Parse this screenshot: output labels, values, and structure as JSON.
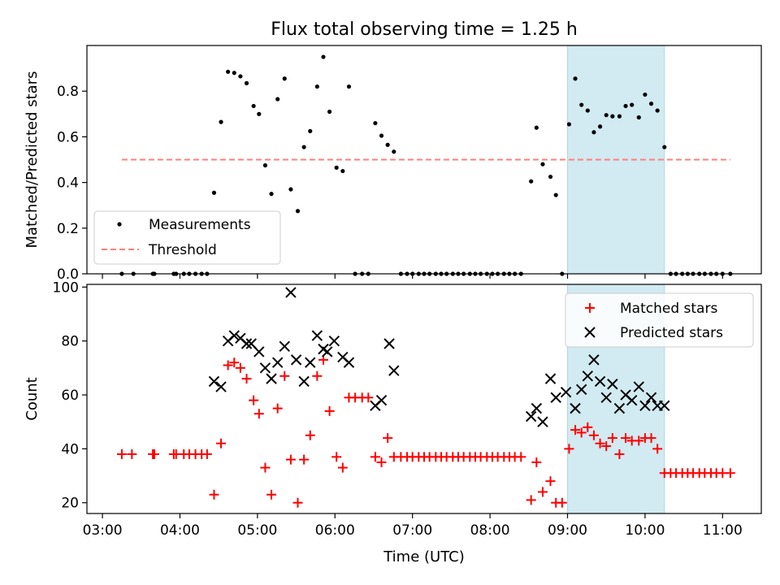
{
  "chart_data": {
    "title": "Flux total observing time = 1.25 h",
    "xlabel": "Time (UTC)",
    "x_unit": "hours UTC",
    "x_ticks": [
      3,
      4,
      5,
      6,
      7,
      8,
      9,
      10,
      11
    ],
    "x_tick_labels": [
      "03:00",
      "04:00",
      "05:00",
      "06:00",
      "07:00",
      "08:00",
      "09:00",
      "10:00",
      "11:00"
    ],
    "xlim": [
      2.8,
      11.5
    ],
    "highlight_span": {
      "start": 9.0,
      "end": 10.25,
      "color": "#add8e6"
    },
    "panels": [
      {
        "type": "scatter",
        "ylabel": "Matched/Predicted stars",
        "ylim": [
          0,
          1.0
        ],
        "y_ticks": [
          0.0,
          0.2,
          0.4,
          0.6,
          0.8
        ],
        "y_tick_labels": [
          "0.0",
          "0.2",
          "0.4",
          "0.6",
          "0.8"
        ],
        "legend_position": "lower-left",
        "series": [
          {
            "name": "Measurements",
            "marker": "dot",
            "color": "#000000",
            "points": [
              [
                3.25,
                0
              ],
              [
                3.4,
                0
              ],
              [
                3.65,
                0
              ],
              [
                3.67,
                0
              ],
              [
                3.92,
                0
              ],
              [
                3.95,
                0
              ],
              [
                4.05,
                0
              ],
              [
                4.12,
                0
              ],
              [
                4.2,
                0
              ],
              [
                4.28,
                0
              ],
              [
                4.35,
                0
              ],
              [
                4.44,
                0.355
              ],
              [
                4.53,
                0.665
              ],
              [
                4.62,
                0.885
              ],
              [
                4.7,
                0.88
              ],
              [
                4.78,
                0.865
              ],
              [
                4.86,
                0.835
              ],
              [
                4.95,
                0.735
              ],
              [
                5.02,
                0.7
              ],
              [
                5.1,
                0.475
              ],
              [
                5.18,
                0.35
              ],
              [
                5.26,
                0.765
              ],
              [
                5.35,
                0.855
              ],
              [
                5.43,
                0.37
              ],
              [
                5.52,
                0.275
              ],
              [
                5.6,
                0.555
              ],
              [
                5.68,
                0.625
              ],
              [
                5.77,
                0.82
              ],
              [
                5.85,
                0.95
              ],
              [
                5.93,
                0.71
              ],
              [
                6.02,
                0.465
              ],
              [
                6.1,
                0.45
              ],
              [
                6.18,
                0.82
              ],
              [
                6.26,
                0
              ],
              [
                6.35,
                0
              ],
              [
                6.43,
                0
              ],
              [
                6.52,
                0.66
              ],
              [
                6.6,
                0.605
              ],
              [
                6.68,
                0.565
              ],
              [
                6.76,
                0.535
              ],
              [
                6.85,
                0
              ],
              [
                6.93,
                0
              ],
              [
                7.0,
                0
              ],
              [
                7.08,
                0
              ],
              [
                7.15,
                0
              ],
              [
                7.22,
                0
              ],
              [
                7.3,
                0
              ],
              [
                7.37,
                0
              ],
              [
                7.44,
                0
              ],
              [
                7.52,
                0
              ],
              [
                7.59,
                0
              ],
              [
                7.66,
                0
              ],
              [
                7.74,
                0
              ],
              [
                7.81,
                0
              ],
              [
                7.88,
                0
              ],
              [
                7.96,
                0
              ],
              [
                8.03,
                0
              ],
              [
                8.1,
                0
              ],
              [
                8.18,
                0
              ],
              [
                8.25,
                0
              ],
              [
                8.32,
                0
              ],
              [
                8.4,
                0
              ],
              [
                8.53,
                0.405
              ],
              [
                8.6,
                0.64
              ],
              [
                8.68,
                0.48
              ],
              [
                8.78,
                0.425
              ],
              [
                8.85,
                0.345
              ],
              [
                8.93,
                0
              ],
              [
                9.02,
                0.655
              ],
              [
                9.1,
                0.855
              ],
              [
                9.18,
                0.74
              ],
              [
                9.26,
                0.715
              ],
              [
                9.34,
                0.62
              ],
              [
                9.42,
                0.645
              ],
              [
                9.5,
                0.695
              ],
              [
                9.58,
                0.69
              ],
              [
                9.67,
                0.69
              ],
              [
                9.75,
                0.735
              ],
              [
                9.83,
                0.74
              ],
              [
                9.92,
                0.685
              ],
              [
                10.0,
                0.785
              ],
              [
                10.08,
                0.745
              ],
              [
                10.16,
                0.715
              ],
              [
                10.25,
                0.555
              ],
              [
                10.33,
                0
              ],
              [
                10.4,
                0
              ],
              [
                10.48,
                0
              ],
              [
                10.55,
                0
              ],
              [
                10.62,
                0
              ],
              [
                10.7,
                0
              ],
              [
                10.77,
                0
              ],
              [
                10.85,
                0
              ],
              [
                10.92,
                0
              ],
              [
                11.0,
                0
              ],
              [
                11.1,
                0
              ]
            ]
          },
          {
            "name": "Threshold",
            "marker": "dashed-line",
            "color": "#ff7f7f",
            "points": [
              [
                3.25,
                0.5
              ],
              [
                11.1,
                0.5
              ]
            ]
          }
        ]
      },
      {
        "type": "scatter",
        "ylabel": "Count",
        "ylim": [
          16,
          101
        ],
        "y_ticks": [
          20,
          40,
          60,
          80,
          100
        ],
        "y_tick_labels": [
          "20",
          "40",
          "60",
          "80",
          "100"
        ],
        "legend_position": "upper-right",
        "series": [
          {
            "name": "Matched stars",
            "marker": "plus",
            "color": "#ff0000",
            "points": [
              [
                3.25,
                38
              ],
              [
                3.38,
                38
              ],
              [
                3.65,
                38
              ],
              [
                3.67,
                38
              ],
              [
                3.92,
                38
              ],
              [
                3.95,
                38
              ],
              [
                4.05,
                38
              ],
              [
                4.12,
                38
              ],
              [
                4.2,
                38
              ],
              [
                4.28,
                38
              ],
              [
                4.35,
                38
              ],
              [
                4.44,
                23
              ],
              [
                4.53,
                42
              ],
              [
                4.62,
                71
              ],
              [
                4.7,
                72
              ],
              [
                4.78,
                70
              ],
              [
                4.86,
                66
              ],
              [
                4.95,
                58
              ],
              [
                5.02,
                53
              ],
              [
                5.1,
                33
              ],
              [
                5.18,
                23
              ],
              [
                5.26,
                55
              ],
              [
                5.35,
                67
              ],
              [
                5.43,
                36
              ],
              [
                5.52,
                20
              ],
              [
                5.6,
                36
              ],
              [
                5.68,
                45
              ],
              [
                5.77,
                67
              ],
              [
                5.85,
                73
              ],
              [
                5.93,
                54
              ],
              [
                6.02,
                37
              ],
              [
                6.1,
                33
              ],
              [
                6.18,
                59
              ],
              [
                6.26,
                59
              ],
              [
                6.35,
                59
              ],
              [
                6.43,
                59
              ],
              [
                6.52,
                37
              ],
              [
                6.6,
                35
              ],
              [
                6.68,
                44
              ],
              [
                6.76,
                37
              ],
              [
                6.85,
                37
              ],
              [
                6.93,
                37
              ],
              [
                7.0,
                37
              ],
              [
                7.08,
                37
              ],
              [
                7.15,
                37
              ],
              [
                7.22,
                37
              ],
              [
                7.3,
                37
              ],
              [
                7.37,
                37
              ],
              [
                7.44,
                37
              ],
              [
                7.52,
                37
              ],
              [
                7.59,
                37
              ],
              [
                7.66,
                37
              ],
              [
                7.74,
                37
              ],
              [
                7.81,
                37
              ],
              [
                7.88,
                37
              ],
              [
                7.96,
                37
              ],
              [
                8.03,
                37
              ],
              [
                8.1,
                37
              ],
              [
                8.18,
                37
              ],
              [
                8.25,
                37
              ],
              [
                8.32,
                37
              ],
              [
                8.4,
                37
              ],
              [
                8.53,
                21
              ],
              [
                8.6,
                35
              ],
              [
                8.68,
                24
              ],
              [
                8.78,
                28
              ],
              [
                8.85,
                20
              ],
              [
                8.93,
                20
              ],
              [
                9.02,
                40
              ],
              [
                9.1,
                47
              ],
              [
                9.18,
                46
              ],
              [
                9.26,
                48
              ],
              [
                9.34,
                45
              ],
              [
                9.42,
                42
              ],
              [
                9.5,
                41
              ],
              [
                9.58,
                44
              ],
              [
                9.67,
                38
              ],
              [
                9.75,
                44
              ],
              [
                9.83,
                43
              ],
              [
                9.92,
                43
              ],
              [
                10.0,
                44
              ],
              [
                10.08,
                44
              ],
              [
                10.16,
                40
              ],
              [
                10.25,
                31
              ],
              [
                10.33,
                31
              ],
              [
                10.4,
                31
              ],
              [
                10.48,
                31
              ],
              [
                10.55,
                31
              ],
              [
                10.62,
                31
              ],
              [
                10.7,
                31
              ],
              [
                10.77,
                31
              ],
              [
                10.85,
                31
              ],
              [
                10.92,
                31
              ],
              [
                11.0,
                31
              ],
              [
                11.1,
                31
              ]
            ]
          },
          {
            "name": "Predicted stars",
            "marker": "x",
            "color": "#000000",
            "points": [
              [
                4.44,
                65
              ],
              [
                4.53,
                63
              ],
              [
                4.62,
                80
              ],
              [
                4.7,
                82
              ],
              [
                4.78,
                81
              ],
              [
                4.86,
                79
              ],
              [
                4.92,
                79
              ],
              [
                5.02,
                76
              ],
              [
                5.1,
                70
              ],
              [
                5.18,
                66
              ],
              [
                5.26,
                72
              ],
              [
                5.35,
                78
              ],
              [
                5.43,
                98
              ],
              [
                5.5,
                73
              ],
              [
                5.6,
                65
              ],
              [
                5.68,
                72
              ],
              [
                5.77,
                82
              ],
              [
                5.85,
                77
              ],
              [
                5.9,
                76
              ],
              [
                5.99,
                80
              ],
              [
                6.1,
                74
              ],
              [
                6.18,
                72
              ],
              [
                6.52,
                56
              ],
              [
                6.6,
                58
              ],
              [
                6.7,
                79
              ],
              [
                6.76,
                69
              ],
              [
                8.53,
                52
              ],
              [
                8.6,
                55
              ],
              [
                8.68,
                50
              ],
              [
                8.78,
                66
              ],
              [
                8.85,
                59
              ],
              [
                8.98,
                61
              ],
              [
                9.1,
                55
              ],
              [
                9.18,
                62
              ],
              [
                9.26,
                67
              ],
              [
                9.34,
                73
              ],
              [
                9.42,
                65
              ],
              [
                9.5,
                59
              ],
              [
                9.58,
                64
              ],
              [
                9.67,
                55
              ],
              [
                9.75,
                60
              ],
              [
                9.83,
                58
              ],
              [
                9.92,
                63
              ],
              [
                10.0,
                56
              ],
              [
                10.08,
                59
              ],
              [
                10.16,
                56
              ],
              [
                10.25,
                56
              ]
            ]
          }
        ]
      }
    ]
  }
}
